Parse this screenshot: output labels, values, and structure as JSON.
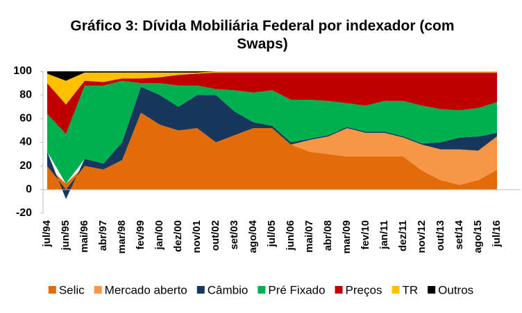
{
  "chart_data": {
    "type": "stacked_area",
    "title": "Gráfico 3: Dívida Mobiliária Federal por indexador (com Swaps)",
    "categories": [
      "jul/94",
      "jun/95",
      "mai/96",
      "abr/97",
      "mar/98",
      "fev/99",
      "jan/00",
      "dez/00",
      "nov/01",
      "out/02",
      "set/03",
      "ago/04",
      "jul/05",
      "jun/06",
      "mai/07",
      "abr/08",
      "mar/09",
      "fev/10",
      "jan/11",
      "dez/11",
      "nov/12",
      "out/13",
      "set/14",
      "ago/15",
      "jul/16"
    ],
    "series": [
      {
        "name": "Selic",
        "color": "#e36c0a",
        "values": [
          20,
          5,
          20,
          17,
          25,
          65,
          55,
          50,
          52,
          40,
          46,
          52,
          52,
          38,
          32,
          30,
          28,
          28,
          28,
          28,
          16,
          8,
          4,
          8,
          17
        ]
      },
      {
        "name": "Mercado aberto",
        "color": "#f79646",
        "values": [
          0,
          0,
          0,
          0,
          0,
          0,
          0,
          0,
          0,
          0,
          0,
          0,
          0,
          0,
          10,
          15,
          24,
          20,
          20,
          16,
          22,
          26,
          30,
          25,
          28
        ]
      },
      {
        "name": "Câmbio",
        "color": "#17375e",
        "values": [
          12,
          -8,
          6,
          5,
          15,
          22,
          25,
          20,
          28,
          40,
          20,
          5,
          2,
          2,
          1,
          1,
          1,
          1,
          1,
          1,
          1,
          6,
          10,
          12,
          3
        ]
      },
      {
        "name": "Pré Fixado",
        "color": "#00b050",
        "values": [
          32,
          42,
          62,
          66,
          52,
          3,
          10,
          18,
          8,
          5,
          18,
          25,
          30,
          36,
          33,
          29,
          20,
          22,
          26,
          30,
          32,
          28,
          23,
          24,
          26
        ]
      },
      {
        "name": "Preços",
        "color": "#c00000",
        "values": [
          26,
          25,
          4,
          3,
          2,
          4,
          5,
          9,
          10,
          14,
          15,
          17,
          15,
          23,
          23,
          24,
          26,
          28,
          24,
          24,
          28,
          31,
          32,
          30,
          25
        ]
      },
      {
        "name": "TR",
        "color": "#ffc000",
        "values": [
          8,
          20,
          7,
          8,
          5,
          5,
          4,
          2,
          1,
          1,
          1,
          1,
          1,
          1,
          1,
          1,
          1,
          1,
          1,
          1,
          1,
          1,
          1,
          1,
          1
        ]
      },
      {
        "name": "Outros",
        "color": "#000000",
        "values": [
          2,
          8,
          1,
          1,
          1,
          1,
          1,
          1,
          1,
          0,
          0,
          0,
          0,
          0,
          0,
          0,
          0,
          0,
          0,
          0,
          0,
          0,
          0,
          0,
          0
        ]
      }
    ],
    "ylim": [
      -20,
      100
    ],
    "yticks": [
      -20,
      0,
      20,
      40,
      60,
      80,
      100
    ]
  }
}
